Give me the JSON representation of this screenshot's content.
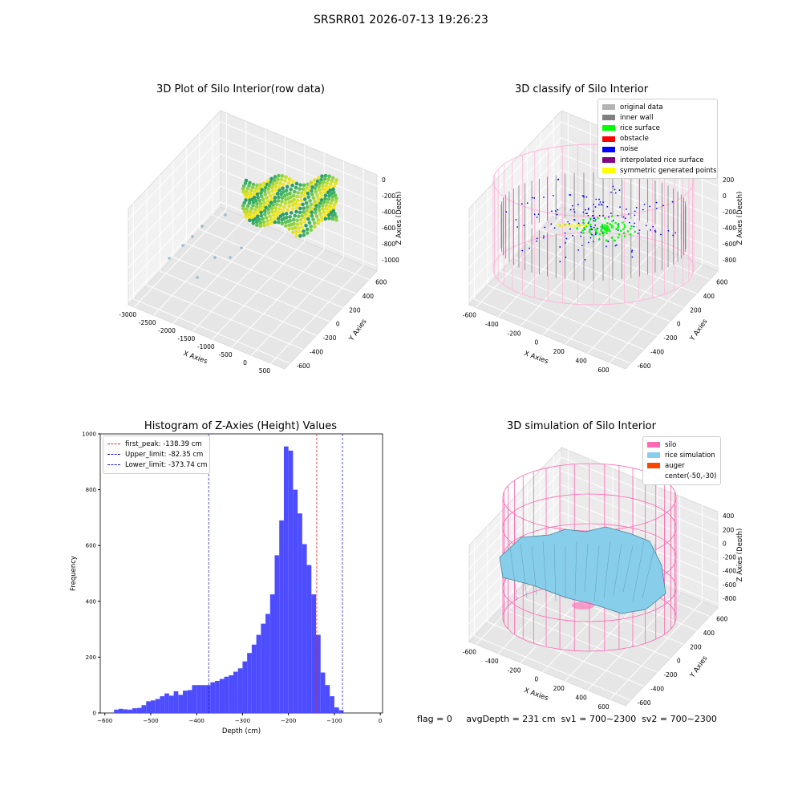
{
  "suptitle": "SRSRR01 2026-07-13 19:26:23",
  "footer": "flag = 0     avgDepth = 231 cm  sv1 = 700~2300  sv2 = 700~2300",
  "colors": {
    "hist_bar": "#4d4dff",
    "peak_line": "#d62728",
    "limit_line": "#1f1fcf",
    "silo": "#ff69b4",
    "rice_sim": "#87ceeb",
    "auger": "#ff4500"
  },
  "chart_data": [
    {
      "type": "scatter",
      "title": "3D Plot of Silo Interior(row data)",
      "xlabel": "X Axies",
      "ylabel": "Y Axies",
      "zlabel": "Z Axies (Depth)",
      "x_ticks": [
        "-3000",
        "-2500",
        "-2000",
        "-1500",
        "-1000",
        "-500",
        "0",
        "500"
      ],
      "y_ticks": [
        "-600",
        "-400",
        "-200",
        "0",
        "200",
        "400",
        "600"
      ],
      "z_ticks": [
        "0",
        "-200",
        "-400",
        "-600",
        "-800",
        "-1000"
      ],
      "colormap": "viridis"
    },
    {
      "type": "scatter",
      "title": "3D classify of Silo Interior",
      "xlabel": "X Axies",
      "ylabel": "Y Axies",
      "zlabel": "Z Axies (Depth)",
      "x_ticks": [
        "-600",
        "-400",
        "-200",
        "0",
        "200",
        "400",
        "600"
      ],
      "y_ticks": [
        "-600",
        "-400",
        "-200",
        "0",
        "200",
        "400",
        "600"
      ],
      "z_ticks": [
        "200",
        "0",
        "-200",
        "-400",
        "-600",
        "-800"
      ],
      "legend_position": "top-right",
      "legend": [
        {
          "label": "original data",
          "color": "#b3b3b3"
        },
        {
          "label": "inner wall",
          "color": "#808080"
        },
        {
          "label": "rice surface",
          "color": "#00ff00"
        },
        {
          "label": "obstacle",
          "color": "#ff0000"
        },
        {
          "label": "noise",
          "color": "#0000ff"
        },
        {
          "label": "interpolated rice surface",
          "color": "#800080"
        },
        {
          "label": "symmetric generated points",
          "color": "#ffff00"
        }
      ]
    },
    {
      "type": "bar",
      "title": "Histogram of Z-Axies (Height) Values",
      "xlabel": "Depth (cm)",
      "ylabel": "Frequency",
      "xlim": [
        -610,
        5
      ],
      "ylim": [
        0,
        1000
      ],
      "x_ticks": [
        -600,
        -500,
        -400,
        -300,
        -200,
        -100,
        0
      ],
      "y_ticks": [
        0,
        200,
        400,
        600,
        800,
        1000
      ],
      "bin_width": 10,
      "bin_start": -580,
      "values": [
        12,
        15,
        13,
        12,
        17,
        18,
        28,
        42,
        45,
        50,
        60,
        70,
        62,
        78,
        65,
        80,
        82,
        100,
        100,
        100,
        100,
        110,
        115,
        122,
        130,
        135,
        148,
        160,
        185,
        215,
        245,
        280,
        320,
        355,
        425,
        565,
        690,
        955,
        940,
        800,
        715,
        605,
        530,
        425,
        280,
        145,
        100,
        60,
        20,
        10
      ],
      "legend_position": "top-left",
      "lines": [
        {
          "label": "first_peak: -138.39 cm",
          "x": -138.39,
          "color": "#d62728"
        },
        {
          "label": "Upper_limit: -82.35 cm",
          "x": -82.35,
          "color": "#1f1fcf"
        },
        {
          "label": "Lower_limit: -373.74 cm",
          "x": -373.74,
          "color": "#1f1fcf"
        }
      ]
    },
    {
      "type": "scatter",
      "title": "3D simulation of Silo Interior",
      "xlabel": "X Axies",
      "ylabel": "Y Axies",
      "zlabel": "Z Axies (Depth)",
      "x_ticks": [
        "-600",
        "-400",
        "-200",
        "0",
        "200",
        "400",
        "600"
      ],
      "y_ticks": [
        "-600",
        "-400",
        "-200",
        "0",
        "200",
        "400",
        "600"
      ],
      "z_ticks": [
        "400",
        "200",
        "0",
        "-200",
        "-400",
        "-600",
        "-800"
      ],
      "legend_position": "top-right",
      "legend": [
        {
          "label": "silo",
          "color": "#ff69b4"
        },
        {
          "label": "rice simulation",
          "color": "#87ceeb"
        },
        {
          "label": "auger",
          "color": "#ff4500"
        },
        {
          "label": "center(-50,-30)",
          "color": ""
        }
      ]
    }
  ]
}
